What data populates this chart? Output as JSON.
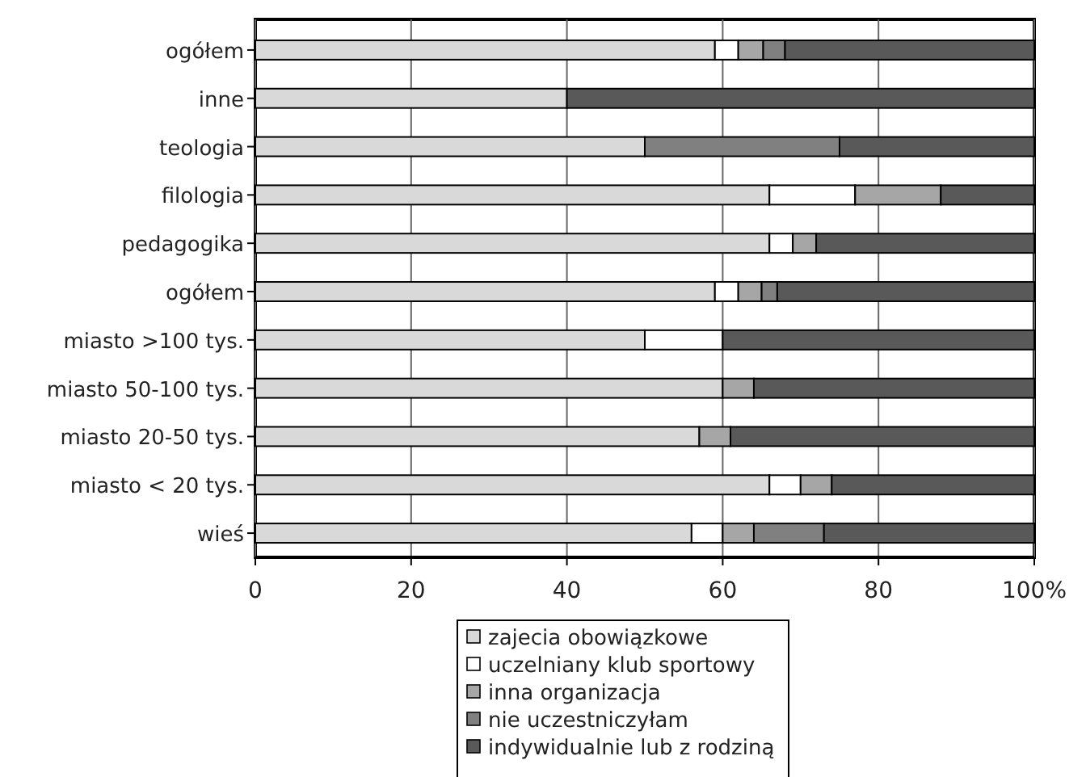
{
  "chart_data": {
    "type": "bar",
    "orientation": "horizontal",
    "stacked": true,
    "categories": [
      "ogółem",
      "inne",
      "teologia",
      "filologia",
      "pedagogika",
      "ogółem",
      "miasto >100 tys.",
      "miasto 50-100 tys.",
      "miasto 20-50 tys.",
      "miasto < 20 tys.",
      "wieś"
    ],
    "series": [
      {
        "name": "zajecia obowiązkowe",
        "color": "#d9d9d9",
        "values": [
          59,
          40,
          50,
          66,
          66,
          59,
          50,
          60,
          57,
          66,
          56
        ]
      },
      {
        "name": "uczelniany klub sportowy",
        "color": "#ffffff",
        "values": [
          3,
          0,
          0,
          11,
          3,
          3,
          10,
          0,
          0,
          4,
          4
        ]
      },
      {
        "name": "inna organizacja",
        "color": "#a6a6a6",
        "values": [
          3.2,
          0,
          0,
          11,
          3,
          3,
          0,
          4,
          4,
          4,
          4
        ]
      },
      {
        "name": "nie uczestniczyłam",
        "color": "#808080",
        "values": [
          2.8,
          0,
          25,
          0,
          0,
          2,
          0,
          0,
          0,
          0,
          9
        ]
      },
      {
        "name": "indywidualnie lub z rodziną",
        "color": "#595959",
        "values": [
          32,
          60,
          25,
          12,
          28,
          33,
          40,
          36,
          39,
          26,
          27
        ]
      }
    ],
    "xlim": [
      0,
      100
    ],
    "xticks": [
      0,
      20,
      40,
      60,
      80,
      {
        "value": 100,
        "label": "100%"
      }
    ],
    "grid": "x",
    "legend": "bottom"
  }
}
